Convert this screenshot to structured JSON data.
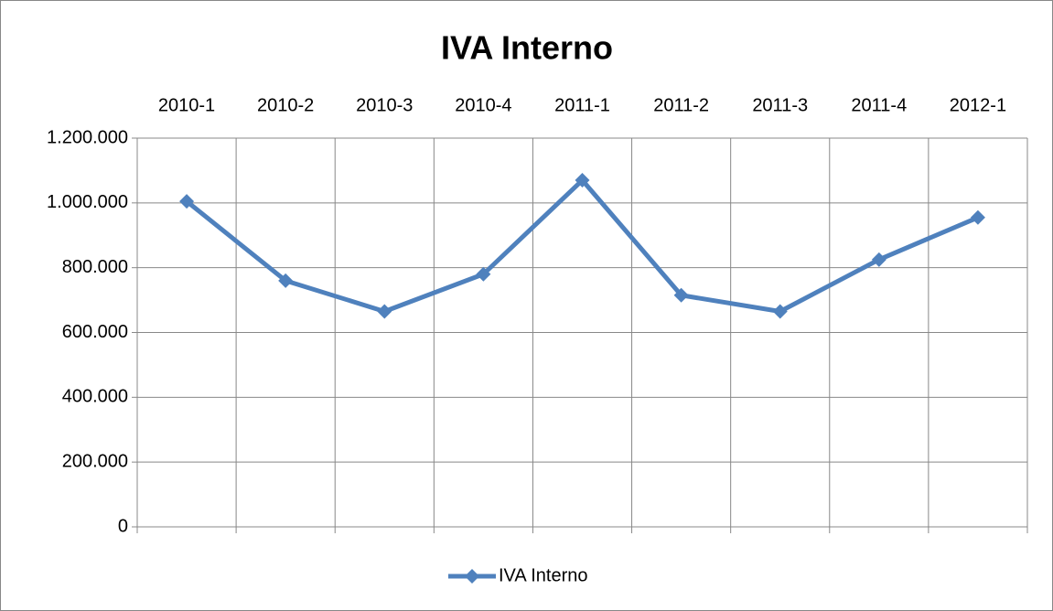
{
  "chart_data": {
    "type": "line",
    "title": "IVA Interno",
    "categories": [
      "2010-1",
      "2010-2",
      "2010-3",
      "2010-4",
      "2011-1",
      "2011-2",
      "2011-3",
      "2011-4",
      "2012-1"
    ],
    "series": [
      {
        "name": "IVA Interno",
        "color": "#4f81bd",
        "values": [
          1005000,
          760000,
          665000,
          780000,
          1070000,
          715000,
          665000,
          825000,
          955000
        ]
      }
    ],
    "ylim": [
      0,
      1200000
    ],
    "yticks": [
      0,
      {
        "value": 200000,
        "label": "200.000"
      },
      {
        "value": 400000,
        "label": "400.000"
      },
      {
        "value": 600000,
        "label": "600.000"
      },
      {
        "value": 800000,
        "label": "800.000"
      },
      {
        "value": 1000000,
        "label": "1.000.000"
      },
      {
        "value": 1200000,
        "label": "1.200.000"
      }
    ],
    "grid": true,
    "legend": "bottom"
  }
}
